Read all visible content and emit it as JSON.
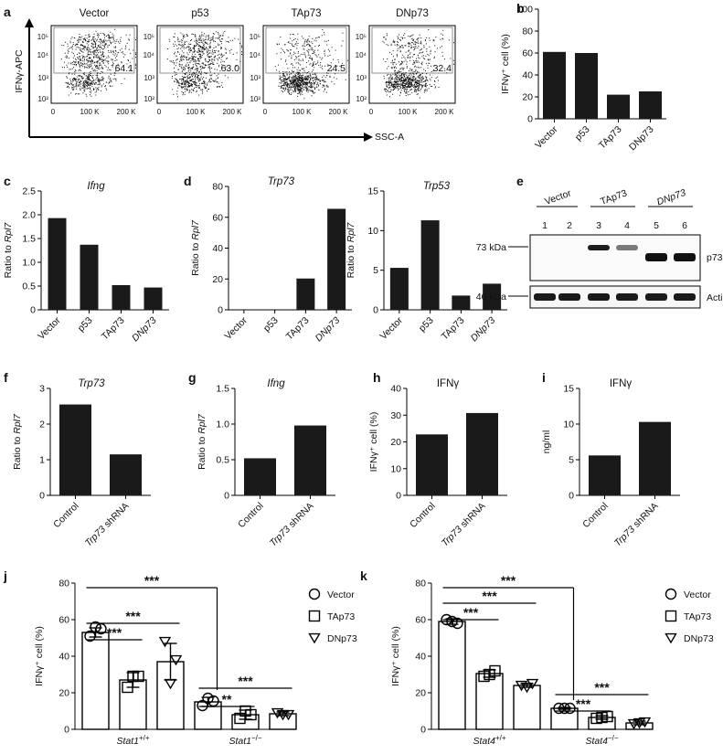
{
  "colors": {
    "bar": "#1a1a1a",
    "dot": "#111111"
  },
  "flow": {
    "letter": "a",
    "ylabel": "IFNγ-APC",
    "xlabel": "SSC-A",
    "y_ticks": [
      "10⁵",
      "10⁴",
      "10³",
      "10²"
    ],
    "x_ticks": [
      "0",
      "100 K",
      "200 K"
    ],
    "plots": [
      {
        "title": "Vector",
        "percent": "64.1"
      },
      {
        "title": "p53",
        "percent": "63.0"
      },
      {
        "title": "TAp73",
        "percent": "24.5"
      },
      {
        "title": "DNp73",
        "percent": "32.4"
      }
    ]
  },
  "chart_data": [
    {
      "id": "b",
      "type": "bar",
      "title": "",
      "ylabel": "IFNγ⁺ cell (%)",
      "categories": [
        "Vector",
        "p53",
        "TAp73",
        "DNp73"
      ],
      "cat_italic": false,
      "values": [
        61,
        60,
        22,
        25
      ],
      "ylim": [
        0,
        100
      ],
      "yticks": [
        "0",
        "20",
        "40",
        "60",
        "80",
        "100"
      ]
    },
    {
      "id": "c",
      "type": "bar",
      "title": "Ifng",
      "ylabel": "Ratio to Rpl7",
      "categories": [
        "Vector",
        "p53",
        "TAp73",
        "DNp73"
      ],
      "cat_italic": [
        false,
        false,
        false,
        true
      ],
      "values": [
        1.93,
        1.37,
        0.52,
        0.47
      ],
      "ylim": [
        0,
        2.5
      ],
      "yticks": [
        "0",
        "0.5",
        "1.0",
        "1.5",
        "2.0",
        "2.5"
      ]
    },
    {
      "id": "d1",
      "type": "bar",
      "title": "Trp73",
      "ylabel": "Ratio to Rpl7",
      "categories": [
        "Vector",
        "p53",
        "TAp73",
        "DNp73"
      ],
      "cat_italic": [
        false,
        false,
        false,
        true
      ],
      "values": [
        0,
        0,
        20.3,
        65.5
      ],
      "ylim": [
        0,
        80
      ],
      "yticks": [
        "0",
        "20",
        "40",
        "60",
        "80"
      ]
    },
    {
      "id": "d2",
      "type": "bar",
      "title": "Trp53",
      "ylabel": "Ratio to Rpl7",
      "categories": [
        "Vector",
        "p53",
        "TAp73",
        "DNp73"
      ],
      "cat_italic": [
        false,
        false,
        false,
        true
      ],
      "values": [
        5.3,
        11.3,
        1.8,
        3.3
      ],
      "ylim": [
        0,
        15
      ],
      "yticks": [
        "0",
        "5",
        "10",
        "15"
      ]
    },
    {
      "id": "f",
      "type": "bar",
      "title": "Trp73",
      "ylabel": "Ratio to Rpl7",
      "categories": [
        "Control",
        "Trp73 shRNA"
      ],
      "cat_italic": [
        false,
        "partial"
      ],
      "values": [
        2.55,
        1.15
      ],
      "ylim": [
        0,
        3
      ],
      "yticks": [
        "0",
        "1",
        "2",
        "3"
      ]
    },
    {
      "id": "g",
      "type": "bar",
      "title": "Ifng",
      "ylabel": "Ratio to Rpl7",
      "categories": [
        "Control",
        "Trp73 shRNA"
      ],
      "cat_italic": [
        false,
        "partial"
      ],
      "values": [
        0.52,
        0.98
      ],
      "ylim": [
        0,
        1.5
      ],
      "yticks": [
        "0",
        "0.5",
        "1.0",
        "1.5"
      ]
    },
    {
      "id": "h",
      "type": "bar",
      "title": "IFNγ",
      "ylabel": "IFNγ⁺ cell (%)",
      "categories": [
        "Control",
        "Trp73 shRNA"
      ],
      "cat_italic": [
        false,
        "partial"
      ],
      "values": [
        22.8,
        30.8
      ],
      "ylim": [
        0,
        40
      ],
      "yticks": [
        "0",
        "10",
        "20",
        "30",
        "40"
      ]
    },
    {
      "id": "i",
      "type": "bar",
      "title": "IFNγ",
      "ylabel": "ng/ml",
      "categories": [
        "Control",
        "Trp73 shRNA"
      ],
      "cat_italic": [
        false,
        "partial"
      ],
      "values": [
        5.6,
        10.3
      ],
      "ylim": [
        0,
        15
      ],
      "yticks": [
        "0",
        "5",
        "10",
        "15"
      ]
    },
    {
      "id": "j",
      "type": "bar",
      "title": "",
      "ylabel": "IFNγ⁺ cell (%)",
      "ylim": [
        0,
        80
      ],
      "yticks": [
        "0",
        "20",
        "40",
        "60",
        "80"
      ],
      "groups": [
        "Stat1+/+",
        "Stat1−/−"
      ],
      "series": [
        {
          "name": "Vector",
          "marker": "circle",
          "values": [
            53,
            15
          ],
          "errors": [
            2.5,
            2.5
          ],
          "points": [
            [
              51,
              55,
              56
            ],
            [
              13,
              15.5,
              17
            ]
          ]
        },
        {
          "name": "TAp73",
          "marker": "square",
          "values": [
            27,
            8
          ],
          "errors": [
            4,
            2.5
          ],
          "points": [
            [
              23,
              29,
              29
            ],
            [
              6,
              8,
              10
            ]
          ]
        },
        {
          "name": "DNp73",
          "marker": "triangle",
          "values": [
            37,
            8.5
          ],
          "errors": [
            10,
            1
          ],
          "points": [
            [
              48,
              38,
              25
            ],
            [
              9,
              8,
              8
            ]
          ]
        }
      ],
      "significance": [
        "***",
        "***",
        "***",
        "**",
        "***"
      ]
    },
    {
      "id": "k",
      "type": "bar",
      "title": "",
      "ylabel": "IFNγ⁺ cell (%)",
      "ylim": [
        0,
        80
      ],
      "yticks": [
        "0",
        "20",
        "40",
        "60",
        "80"
      ],
      "groups": [
        "Stat4+/+",
        "Stat4−/−"
      ],
      "series": [
        {
          "name": "Vector",
          "marker": "circle",
          "values": [
            59,
            11.5
          ],
          "errors": [
            1.5,
            0.5
          ],
          "points": [
            [
              60,
              58,
              59
            ],
            [
              11.5,
              11.5,
              11.5
            ]
          ]
        },
        {
          "name": "TAp73",
          "marker": "square",
          "values": [
            30.5,
            6.5
          ],
          "errors": [
            2,
            1
          ],
          "points": [
            [
              29,
              32,
              30
            ],
            [
              6,
              7,
              6.5
            ]
          ]
        },
        {
          "name": "DNp73",
          "marker": "triangle",
          "values": [
            24,
            3.5
          ],
          "errors": [
            1,
            1
          ],
          "points": [
            [
              24,
              25,
              23
            ],
            [
              3,
              4,
              3.5
            ]
          ]
        }
      ],
      "significance": [
        "***",
        "***",
        "***",
        "***",
        "***"
      ]
    }
  ],
  "blot": {
    "letter": "e",
    "groups": [
      "Vector",
      "TAp73",
      "DNp73"
    ],
    "lanes": [
      "1",
      "2",
      "3",
      "4",
      "5",
      "6"
    ],
    "markers": [
      "73 kDa",
      "46 kDa"
    ],
    "bands": [
      "p73",
      "Actin"
    ]
  },
  "letters": {
    "b": "b",
    "c": "c",
    "d": "d",
    "f": "f",
    "g": "g",
    "h": "h",
    "i": "i",
    "j": "j",
    "k": "k"
  }
}
